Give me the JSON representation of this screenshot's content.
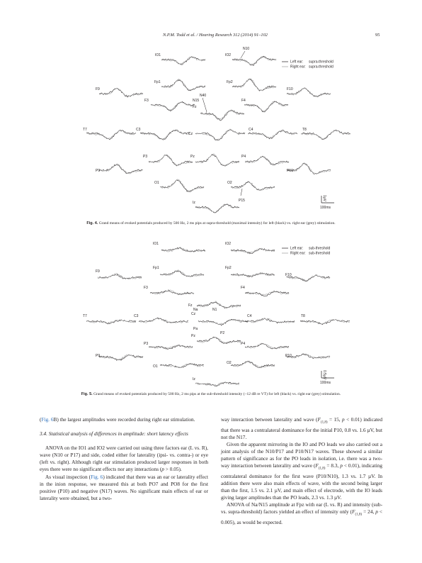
{
  "header": {
    "journal": "N.P.M. Todd et al. / Hearing Research 312 (2014) 91–102",
    "page": "95"
  },
  "fig4": {
    "caption_label": "Fig. 4.",
    "caption_text": " Grand means of evoked potentials produced by 500 Hz, 2 ms pips at supra-threshold (maximal intensity) for left (black) vs. right ear (grey) stimulation.",
    "legend": {
      "left": "Left ear:",
      "left_cond": "supra-threshold",
      "right": "Right ear:",
      "right_cond": "supra-threshold"
    },
    "electrodes": [
      "IO1",
      "IO2",
      "Fp1",
      "Fp2",
      "F9",
      "F3",
      "Fz",
      "F4",
      "F10",
      "T7",
      "C3",
      "Cz",
      "C4",
      "T8",
      "P3",
      "Pz",
      "P4",
      "P9",
      "P10",
      "O1",
      "O2",
      "Iz"
    ],
    "components": [
      "N10",
      "N40",
      "N15",
      "P15"
    ],
    "scale": {
      "amp": "1µV",
      "time": "100ms"
    }
  },
  "fig5": {
    "caption_label": "Fig. 5.",
    "caption_text": " Grand means of evoked potentials produced by 500 Hz, 2 ms pips at the sub-threshold intensity (−12 dB re VT) for left (black) vs. right ear (grey) stimulation.",
    "legend": {
      "left": "Left ear:",
      "left_cond": "sub-threshold",
      "right": "Right ear:",
      "right_cond": "sub-threshold"
    },
    "electrodes": [
      "IO1",
      "IO2",
      "Fp1",
      "Fp2",
      "F9",
      "F10",
      "F3",
      "F4",
      "Fz",
      "T7",
      "C3",
      "Cz",
      "C4",
      "T8",
      "Pz",
      "P3",
      "P4",
      "P9",
      "P10",
      "O1",
      "O2",
      "Iz"
    ],
    "components": [
      "Na",
      "N1",
      "Pa",
      "P2"
    ],
    "scale": {
      "amp": "0.5µV",
      "time": "100ms"
    }
  },
  "left_column": {
    "p1": "(Fig. 6B) the largest amplitudes were recorded during right ear stimulation.",
    "heading": "3.4. Statistical analysis of differences in amplitude: short latency effects",
    "p2": "ANOVA on the IO1 and IO2 were carried out using three factors ear (L vs. R), wave (N10 or P17) and side, coded either for laterality (ipsi- vs. contra-) or eye (left vs. right). Although right ear stimulation produced larger responses in both eyes there were no significant effects nor any interactions (p > 0.05).",
    "p3": "As visual inspection (Fig. 6) indicated that there was an ear or laterality effect in the inion response, we measured this at both PO7 and PO8 for the first positive (P10) and negative (N17) waves. No significant main effects of ear or laterality were obtained, but a two-"
  },
  "right_column": {
    "p1": "way interaction between laterality and wave (F(1,8) = 15, p < 0.01) indicated that there was a contralateral dominance for the initial P10, 0.8 vs. 1.6 µV, but not the N17.",
    "p2": "Given the apparent mirroring in the IO and PO leads we also carried out a joint analysis of the N10/P17 and P10/N17 waves. These showed a similar pattern of significance as for the PO leads in isolation, i.e. there was a two-way interaction between laterality and wave (F(1,8) = 8.3, p < 0.01), indicating contralateral dominance for the first wave (P10/N10), 1.3 vs. 1.7 µV. In addition there were also main effects of wave, with the second being larger than the first, 1.5 vs. 2.1 µV, and main effect of electrode, with the IO leads giving larger amplitudes than the PO leads, 2.3 vs. 1.3 µV.",
    "p3": "ANOVA of Na/N15 amplitude at Fpz with ear (L vs. R) and intensity (sub- vs. supra-threshold) factors yielded an effect of intensity only (F(1,8) = 24, p < 0.005), as would be expected."
  }
}
